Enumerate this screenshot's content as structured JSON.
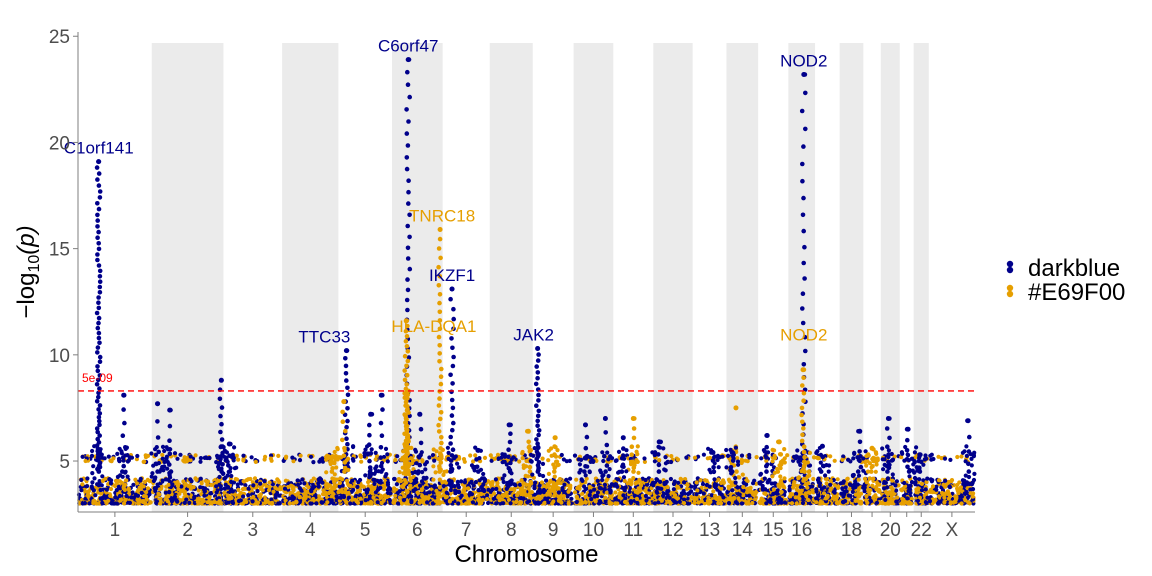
{
  "chart_data": {
    "type": "scatter",
    "title": "",
    "xlabel": "Chromosome",
    "ylabel_prefix": "−log",
    "ylabel_sub": "10",
    "ylabel_suffix": "(p)",
    "ylim": [
      2.6,
      25.2
    ],
    "yticks": [
      5,
      10,
      15,
      20,
      25
    ],
    "grid": false,
    "legend_position": "right",
    "baseline": 3.0,
    "threshold": {
      "value": 8.3,
      "label": "5e-09",
      "color": "#ff0000"
    },
    "chromosomes": [
      {
        "name": "1",
        "label": "1",
        "length": 249
      },
      {
        "name": "2",
        "label": "2",
        "length": 242
      },
      {
        "name": "3",
        "label": "3",
        "length": 198
      },
      {
        "name": "4",
        "label": "4",
        "length": 190
      },
      {
        "name": "5",
        "label": "5",
        "length": 181
      },
      {
        "name": "6",
        "label": "6",
        "length": 171
      },
      {
        "name": "7",
        "label": "7",
        "length": 159
      },
      {
        "name": "8",
        "label": "8",
        "length": 145
      },
      {
        "name": "9",
        "label": "9",
        "length": 138
      },
      {
        "name": "10",
        "label": "10",
        "length": 134
      },
      {
        "name": "11",
        "label": "11",
        "length": 135
      },
      {
        "name": "12",
        "label": "12",
        "length": 133
      },
      {
        "name": "13",
        "label": "13",
        "length": 114
      },
      {
        "name": "14",
        "label": "14",
        "length": 107
      },
      {
        "name": "15",
        "label": "15",
        "length": 102
      },
      {
        "name": "16",
        "label": "16",
        "length": 90
      },
      {
        "name": "17",
        "label": "",
        "length": 83
      },
      {
        "name": "18",
        "label": "18",
        "length": 80
      },
      {
        "name": "19",
        "label": "",
        "length": 59
      },
      {
        "name": "20",
        "label": "20",
        "length": 64
      },
      {
        "name": "21",
        "label": "",
        "length": 47
      },
      {
        "name": "22",
        "label": "22",
        "length": 51
      },
      {
        "name": "X",
        "label": "X",
        "length": 156
      }
    ],
    "series": [
      {
        "name": "darkblue",
        "color": "#00008B"
      },
      {
        "name": "#E69F00",
        "color": "#E69F00"
      }
    ],
    "peaks": [
      {
        "chr": "1",
        "pos": 0.28,
        "top": 19.1,
        "series": 0,
        "n": 70
      },
      {
        "chr": "1",
        "pos": 0.62,
        "top": 8.1,
        "series": 0,
        "n": 8
      },
      {
        "chr": "2",
        "pos": 0.08,
        "top": 7.7,
        "series": 0,
        "n": 6
      },
      {
        "chr": "2",
        "pos": 0.25,
        "top": 7.4,
        "series": 0,
        "n": 6
      },
      {
        "chr": "2",
        "pos": 0.97,
        "top": 8.8,
        "series": 0,
        "n": 14
      },
      {
        "chr": "3",
        "pos": 0.1,
        "top": 5.8,
        "series": 0,
        "n": 4
      },
      {
        "chr": "4",
        "pos": 0.9,
        "top": 5.2,
        "series": 1,
        "n": 4
      },
      {
        "chr": "5",
        "pos": 0.15,
        "top": 10.2,
        "series": 0,
        "n": 22
      },
      {
        "chr": "5",
        "pos": 0.1,
        "top": 7.8,
        "series": 1,
        "n": 10
      },
      {
        "chr": "5",
        "pos": 0.6,
        "top": 7.2,
        "series": 0,
        "n": 8
      },
      {
        "chr": "5",
        "pos": 0.8,
        "top": 8.1,
        "series": 0,
        "n": 8
      },
      {
        "chr": "6",
        "pos": 0.32,
        "top": 23.9,
        "series": 0,
        "n": 45
      },
      {
        "chr": "6",
        "pos": 0.28,
        "top": 11.6,
        "series": 1,
        "n": 40
      },
      {
        "chr": "6",
        "pos": 0.3,
        "top": 8.3,
        "series": 1,
        "n": 30
      },
      {
        "chr": "6",
        "pos": 0.55,
        "top": 7.2,
        "series": 0,
        "n": 6
      },
      {
        "chr": "6",
        "pos": 0.95,
        "top": 15.9,
        "series": 1,
        "n": 35
      },
      {
        "chr": "7",
        "pos": 0.2,
        "top": 13.1,
        "series": 0,
        "n": 25
      },
      {
        "chr": "7",
        "pos": 0.75,
        "top": 5.5,
        "series": 0,
        "n": 4
      },
      {
        "chr": "8",
        "pos": 0.45,
        "top": 6.7,
        "series": 0,
        "n": 8
      },
      {
        "chr": "8",
        "pos": 0.9,
        "top": 6.4,
        "series": 1,
        "n": 6
      },
      {
        "chr": "9",
        "pos": 0.12,
        "top": 10.3,
        "series": 0,
        "n": 28
      },
      {
        "chr": "9",
        "pos": 0.55,
        "top": 6.1,
        "series": 1,
        "n": 6
      },
      {
        "chr": "10",
        "pos": 0.3,
        "top": 6.7,
        "series": 0,
        "n": 6
      },
      {
        "chr": "10",
        "pos": 0.8,
        "top": 7.0,
        "series": 0,
        "n": 6
      },
      {
        "chr": "11",
        "pos": 0.5,
        "top": 7.0,
        "series": 1,
        "n": 8
      },
      {
        "chr": "11",
        "pos": 0.25,
        "top": 6.1,
        "series": 0,
        "n": 5
      },
      {
        "chr": "12",
        "pos": 0.15,
        "top": 5.9,
        "series": 0,
        "n": 4
      },
      {
        "chr": "13",
        "pos": 0.6,
        "top": 5.4,
        "series": 0,
        "n": 4
      },
      {
        "chr": "14",
        "pos": 0.3,
        "top": 7.5,
        "series": 1,
        "n": 3
      },
      {
        "chr": "14",
        "pos": 0.18,
        "top": 5.4,
        "series": 0,
        "n": 4
      },
      {
        "chr": "15",
        "pos": 0.3,
        "top": 6.2,
        "series": 0,
        "n": 5
      },
      {
        "chr": "15",
        "pos": 0.7,
        "top": 5.9,
        "series": 1,
        "n": 4
      },
      {
        "chr": "16",
        "pos": 0.58,
        "top": 23.2,
        "series": 0,
        "n": 30
      },
      {
        "chr": "16",
        "pos": 0.55,
        "top": 9.3,
        "series": 1,
        "n": 18
      },
      {
        "chr": "17",
        "pos": 0.3,
        "top": 5.7,
        "series": 0,
        "n": 4
      },
      {
        "chr": "18",
        "pos": 0.85,
        "top": 6.4,
        "series": 0,
        "n": 6
      },
      {
        "chr": "19",
        "pos": 0.5,
        "top": 5.6,
        "series": 1,
        "n": 4
      },
      {
        "chr": "20",
        "pos": 0.4,
        "top": 7.0,
        "series": 0,
        "n": 8
      },
      {
        "chr": "21",
        "pos": 0.6,
        "top": 6.5,
        "series": 0,
        "n": 6
      },
      {
        "chr": "22",
        "pos": 0.4,
        "top": 5.3,
        "series": 0,
        "n": 4
      },
      {
        "chr": "X",
        "pos": 0.85,
        "top": 6.9,
        "series": 0,
        "n": 5
      }
    ],
    "annotations": [
      {
        "text": "C1orf141",
        "chr": "1",
        "pos": 0.28,
        "y": 19.1,
        "series": 0,
        "dx": 0
      },
      {
        "text": "TTC33",
        "chr": "5",
        "pos": 0.15,
        "y": 10.2,
        "series": 0,
        "dx": -22
      },
      {
        "text": "C6orf47",
        "chr": "6",
        "pos": 0.32,
        "y": 23.9,
        "series": 0,
        "dx": 0
      },
      {
        "text": "TNRC18",
        "chr": "6",
        "pos": 0.95,
        "y": 15.9,
        "series": 1,
        "dx": 2
      },
      {
        "text": "HLA-DQA1",
        "chr": "6",
        "pos": 0.55,
        "y": 10.7,
        "series": 1,
        "dx": 14
      },
      {
        "text": "IKZF1",
        "chr": "7",
        "pos": 0.2,
        "y": 13.1,
        "series": 0,
        "dx": 0
      },
      {
        "text": "JAK2",
        "chr": "9",
        "pos": 0.12,
        "y": 10.3,
        "series": 0,
        "dx": -4
      },
      {
        "text": "NOD2",
        "chr": "16",
        "pos": 0.58,
        "y": 23.2,
        "series": 0,
        "dx": 0
      },
      {
        "text": "NOD2",
        "chr": "16",
        "pos": 0.58,
        "y": 10.3,
        "series": 1,
        "dx": 0
      }
    ]
  }
}
